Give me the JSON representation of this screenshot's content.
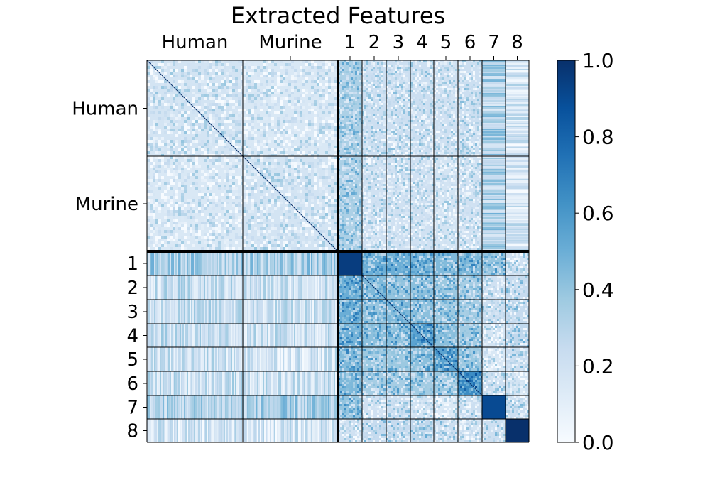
{
  "chart_data": {
    "type": "heatmap",
    "title": "Extracted Features",
    "groups": [
      "Human",
      "Murine",
      "1",
      "2",
      "3",
      "4",
      "5",
      "6",
      "7",
      "8"
    ],
    "group_kind": [
      "sample",
      "sample",
      "cluster",
      "cluster",
      "cluster",
      "cluster",
      "cluster",
      "cluster",
      "cluster",
      "cluster"
    ],
    "block_mean": [
      [
        0.18,
        0.15,
        0.33,
        0.22,
        0.22,
        0.22,
        0.2,
        0.22,
        0.3,
        0.17
      ],
      [
        0.15,
        0.18,
        0.33,
        0.2,
        0.2,
        0.2,
        0.18,
        0.2,
        0.32,
        0.17
      ],
      [
        0.33,
        0.33,
        0.95,
        0.5,
        0.5,
        0.48,
        0.45,
        0.45,
        0.4,
        0.2
      ],
      [
        0.22,
        0.2,
        0.5,
        0.45,
        0.4,
        0.42,
        0.38,
        0.35,
        0.2,
        0.25
      ],
      [
        0.22,
        0.2,
        0.5,
        0.4,
        0.45,
        0.42,
        0.38,
        0.35,
        0.22,
        0.25
      ],
      [
        0.22,
        0.2,
        0.48,
        0.42,
        0.42,
        0.55,
        0.42,
        0.36,
        0.18,
        0.27
      ],
      [
        0.2,
        0.18,
        0.45,
        0.38,
        0.38,
        0.42,
        0.55,
        0.38,
        0.15,
        0.22
      ],
      [
        0.22,
        0.2,
        0.45,
        0.35,
        0.35,
        0.36,
        0.38,
        0.65,
        0.22,
        0.18
      ],
      [
        0.3,
        0.32,
        0.4,
        0.2,
        0.22,
        0.18,
        0.15,
        0.22,
        0.9,
        0.22
      ],
      [
        0.17,
        0.17,
        0.2,
        0.25,
        0.25,
        0.27,
        0.22,
        0.18,
        0.22,
        1.0
      ]
    ],
    "colormap": {
      "name": "Blues",
      "low": "#f7fbff",
      "mid": "#6baed6",
      "high": "#08306b"
    },
    "colorbar": {
      "min": 0.0,
      "max": 1.0,
      "ticks": [
        "0.0",
        "0.2",
        "0.4",
        "0.6",
        "0.8",
        "1.0"
      ]
    },
    "grid": false
  }
}
